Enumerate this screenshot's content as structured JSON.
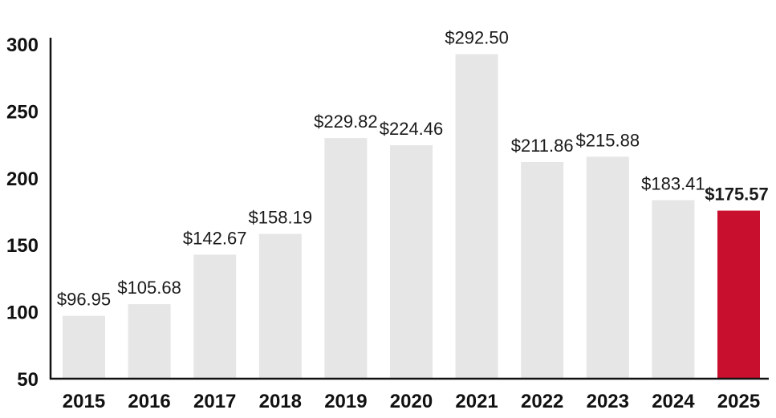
{
  "chart_data": {
    "type": "bar",
    "title": "",
    "xlabel": "",
    "ylabel": "",
    "ylim": [
      50,
      300
    ],
    "yticks": [
      "50",
      "100",
      "150",
      "200",
      "250",
      "300"
    ],
    "yticks_values": [
      50,
      100,
      150,
      200,
      250,
      300
    ],
    "grid": false,
    "categories": [
      "2015",
      "2016",
      "2017",
      "2018",
      "2019",
      "2020",
      "2021",
      "2022",
      "2023",
      "2024",
      "2025"
    ],
    "values": [
      96.95,
      105.68,
      142.67,
      158.19,
      229.82,
      224.46,
      292.5,
      211.86,
      215.88,
      183.41,
      175.57
    ],
    "data_labels": [
      "$96.95",
      "$105.68",
      "$142.67",
      "$158.19",
      "$229.82",
      "$224.46",
      "$292.50",
      "$211.86",
      "$215.88",
      "$183.41",
      "$175.57"
    ],
    "highlight_index": 10,
    "colors": {
      "bar": "#e6e6e7",
      "highlight": "#c8102e",
      "axis": "#111111",
      "text": "#1a1a1a"
    }
  }
}
